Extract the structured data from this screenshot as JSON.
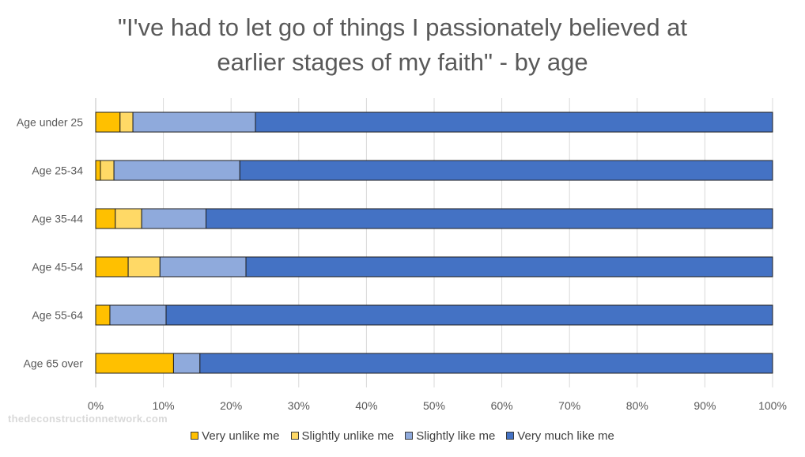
{
  "chart_data": {
    "type": "bar",
    "orientation": "horizontal",
    "stacked": true,
    "percent_stacked": true,
    "title_line1": "\"I've had to let go of things I passionately believed at",
    "title_line2": "earlier stages of my faith\" - by age",
    "categories": [
      "Age under 25",
      "Age 25-34",
      "Age 35-44",
      "Age 45-54",
      "Age 55-64",
      "Age 65 over"
    ],
    "series": [
      {
        "name": "Very unlike me",
        "color": "#FFC000",
        "values": [
          3.6,
          0.7,
          2.9,
          4.8,
          2.1,
          11.5
        ]
      },
      {
        "name": "Slightly unlike me",
        "color": "#FFD966",
        "values": [
          1.9,
          2.0,
          3.9,
          4.7,
          0.0,
          0.0
        ]
      },
      {
        "name": "Slightly like me",
        "color": "#8FAADC",
        "values": [
          18.1,
          18.6,
          9.5,
          12.7,
          8.3,
          3.9
        ]
      },
      {
        "name": "Very much like me",
        "color": "#4472C4",
        "values": [
          76.4,
          78.7,
          83.7,
          77.8,
          89.6,
          84.6
        ]
      }
    ],
    "x_ticks": [
      "0%",
      "10%",
      "20%",
      "30%",
      "40%",
      "50%",
      "60%",
      "70%",
      "80%",
      "90%",
      "100%"
    ],
    "xlim": [
      0,
      100
    ],
    "grid": true,
    "legend_position": "bottom"
  },
  "watermark": "thedeconstructionnetwork.com"
}
